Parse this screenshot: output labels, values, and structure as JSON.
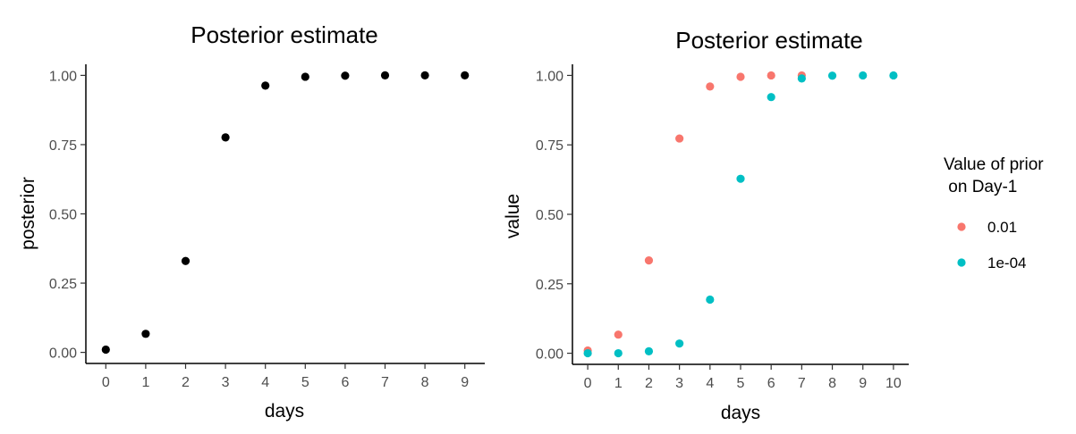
{
  "chart_data": [
    {
      "type": "scatter",
      "title": "Posterior estimate",
      "xlabel": "days",
      "ylabel": "posterior",
      "x": [
        0,
        1,
        2,
        3,
        4,
        5,
        6,
        7,
        8,
        9
      ],
      "y": [
        0.01,
        0.067,
        0.33,
        0.776,
        0.963,
        0.995,
        0.999,
        1.0,
        1.0,
        1.0
      ],
      "xticks": [
        "0",
        "1",
        "2",
        "3",
        "4",
        "5",
        "6",
        "7",
        "8",
        "9"
      ],
      "yticks": [
        "0.00",
        "0.25",
        "0.50",
        "0.75",
        "1.00"
      ],
      "xlim": [
        -0.5,
        9.5
      ],
      "ylim": [
        -0.04,
        1.04
      ],
      "color": "#000000",
      "grid": false
    },
    {
      "type": "scatter",
      "title": "Posterior estimate",
      "xlabel": "days",
      "ylabel": "value",
      "xticks": [
        "0",
        "1",
        "2",
        "3",
        "4",
        "5",
        "6",
        "7",
        "8",
        "9",
        "10"
      ],
      "yticks": [
        "0.00",
        "0.25",
        "0.50",
        "0.75",
        "1.00"
      ],
      "xlim": [
        -0.5,
        10.5
      ],
      "ylim": [
        -0.04,
        1.04
      ],
      "grid": false,
      "legend": {
        "title": "Value of prior\n on Day-1",
        "placement": "right"
      },
      "series": [
        {
          "name": "0.01",
          "color": "#F8766D",
          "x": [
            0,
            1,
            2,
            3,
            4,
            5,
            6,
            7
          ],
          "y": [
            0.01,
            0.067,
            0.334,
            0.773,
            0.96,
            0.995,
            1.0,
            1.0
          ]
        },
        {
          "name": "1e-04",
          "color": "#00BFC4",
          "x": [
            0,
            1,
            2,
            3,
            4,
            5,
            6,
            7,
            8,
            9,
            10
          ],
          "y": [
            0.0,
            0.0,
            0.007,
            0.035,
            0.193,
            0.628,
            0.922,
            0.989,
            0.999,
            1.0,
            1.0
          ]
        }
      ]
    }
  ]
}
